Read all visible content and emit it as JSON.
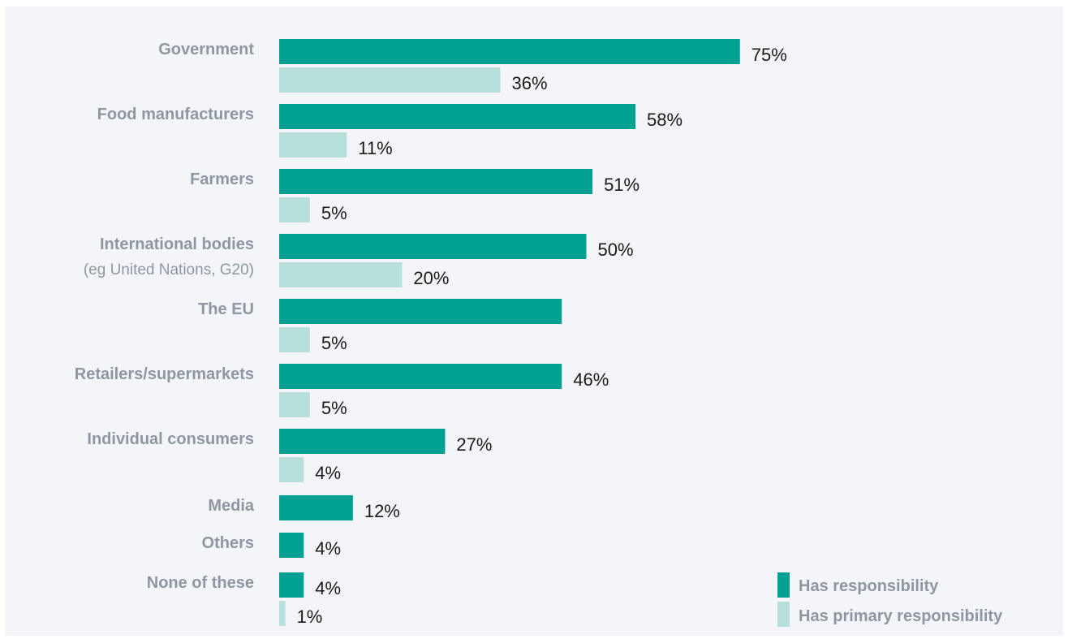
{
  "colors": {
    "has_responsibility": "#00a092",
    "has_primary_responsibility": "#b7e0dc",
    "label_grey": "#8e97a1",
    "value_text": "#1a1a1a",
    "panel_bg": "#f3f5f9"
  },
  "chart_data": {
    "type": "bar",
    "orientation": "horizontal",
    "categories": [
      {
        "label": "Government",
        "sublabel": ""
      },
      {
        "label": "Food manufacturers",
        "sublabel": ""
      },
      {
        "label": "Farmers",
        "sublabel": ""
      },
      {
        "label": "International bodies",
        "sublabel": "(eg United Nations, G20)"
      },
      {
        "label": "The EU",
        "sublabel": ""
      },
      {
        "label": "Retailers/supermarkets",
        "sublabel": ""
      },
      {
        "label": "Individual consumers",
        "sublabel": ""
      },
      {
        "label": "Media",
        "sublabel": ""
      },
      {
        "label": "Others",
        "sublabel": ""
      },
      {
        "label": "None of these",
        "sublabel": ""
      }
    ],
    "series": [
      {
        "name": "Has responsibility",
        "values": [
          75,
          58,
          51,
          50,
          46,
          46,
          27,
          12,
          4,
          4
        ],
        "labels": [
          "75%",
          "58%",
          "51%",
          "50%",
          "",
          "46%",
          "27%",
          "12%",
          "4%",
          "4%"
        ]
      },
      {
        "name": "Has primary responsibility",
        "values": [
          36,
          11,
          5,
          20,
          5,
          5,
          4,
          null,
          null,
          1
        ],
        "labels": [
          "36%",
          "11%",
          "5%",
          "20%",
          "5%",
          "5%",
          "4%",
          "",
          "",
          "1%"
        ]
      }
    ],
    "xlim": [
      0,
      100
    ],
    "grid": false,
    "legend_position": "bottom-right"
  }
}
